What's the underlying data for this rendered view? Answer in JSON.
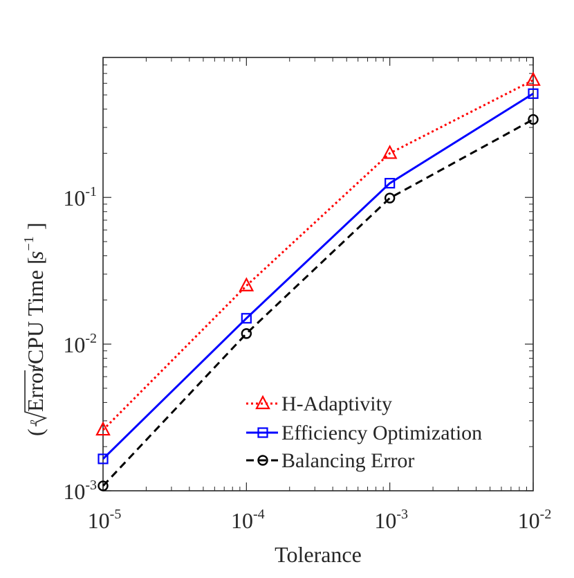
{
  "chart_data": {
    "type": "line",
    "xscale": "log",
    "yscale": "log",
    "xlabel": "Tolerance",
    "ylabel": {
      "open_paren": "(",
      "radical_index": "p",
      "radicand": "Error",
      "rest": "/CPU Time [",
      "unit_base": "s",
      "unit_exp": "−1",
      "close": "]"
    },
    "xlim": [
      1e-05,
      0.01
    ],
    "ylim": [
      0.001,
      0.9
    ],
    "xticks": [
      {
        "value": 1e-05,
        "base": "10",
        "exp": "-5"
      },
      {
        "value": 0.0001,
        "base": "10",
        "exp": "-4"
      },
      {
        "value": 0.001,
        "base": "10",
        "exp": "-3"
      },
      {
        "value": 0.01,
        "base": "10",
        "exp": "-2"
      }
    ],
    "yticks": [
      {
        "value": 0.001,
        "base": "10",
        "exp": "-3"
      },
      {
        "value": 0.01,
        "base": "10",
        "exp": "-2"
      },
      {
        "value": 0.1,
        "base": "10",
        "exp": "-1"
      }
    ],
    "x": [
      1e-05,
      0.0001,
      0.001,
      0.01
    ],
    "series": [
      {
        "name": "H-Adaptivity",
        "values": [
          0.0026,
          0.025,
          0.2,
          0.63
        ],
        "color": "#ff0000",
        "dash": "dotted",
        "marker": "triangle"
      },
      {
        "name": "Efficiency Optimization",
        "values": [
          0.00165,
          0.015,
          0.125,
          0.51
        ],
        "color": "#0000ff",
        "dash": "solid",
        "marker": "square"
      },
      {
        "name": "Balancing Error",
        "values": [
          0.00108,
          0.0118,
          0.099,
          0.34
        ],
        "color": "#000000",
        "dash": "dashed",
        "marker": "circle"
      }
    ],
    "legend_position": "bottom-right",
    "grid": false
  }
}
